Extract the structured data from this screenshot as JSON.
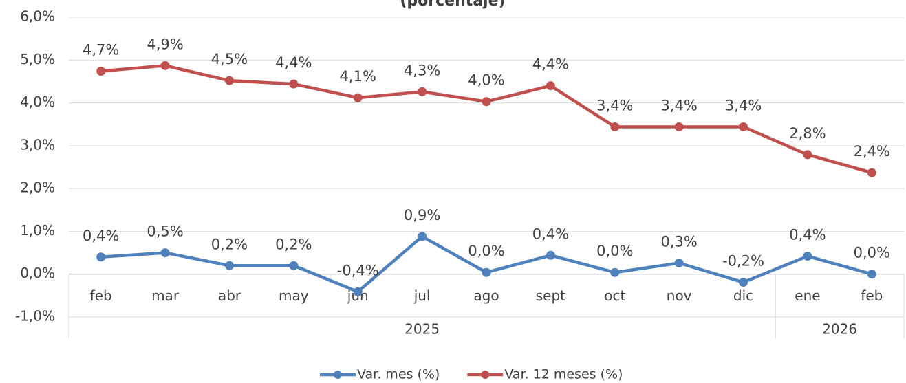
{
  "chart_data": {
    "type": "line",
    "title": "(porcentaje)",
    "categories": [
      "feb",
      "mar",
      "abr",
      "may",
      "jun",
      "jul",
      "ago",
      "sept",
      "oct",
      "nov",
      "dic",
      "ene",
      "feb"
    ],
    "groups": [
      {
        "label": "2025",
        "count": 11
      },
      {
        "label": "2026",
        "count": 2
      }
    ],
    "series": [
      {
        "name": "Var. mes (%)",
        "color": "#4f81bd",
        "values": [
          0.4,
          0.5,
          0.2,
          0.2,
          -0.41,
          0.88,
          0.04,
          0.44,
          0.04,
          0.26,
          -0.19,
          0.42,
          0.0
        ],
        "value_labels": [
          "0,4%",
          "0,5%",
          "0,2%",
          "0,2%",
          "-0,4%",
          "0,9%",
          "0,0%",
          "0,4%",
          "0,0%",
          "0,3%",
          "-0,2%",
          "0,4%",
          "0,0%"
        ]
      },
      {
        "name": "Var. 12 meses (%)",
        "color": "#c0504d",
        "values": [
          4.74,
          4.87,
          4.52,
          4.44,
          4.12,
          4.26,
          4.03,
          4.4,
          3.44,
          3.44,
          3.44,
          2.79,
          2.37
        ],
        "value_labels": [
          "4,7%",
          "4,9%",
          "4,5%",
          "4,4%",
          "4,1%",
          "4,3%",
          "4,0%",
          "4,4%",
          "3,4%",
          "3,4%",
          "3,4%",
          "2,8%",
          "2,4%"
        ]
      }
    ],
    "ylim": [
      -1,
      6
    ],
    "yticks": [
      {
        "value": -1,
        "label": "-1,0%"
      },
      {
        "value": 0,
        "label": "0,0%"
      },
      {
        "value": 1,
        "label": "1,0%"
      },
      {
        "value": 2,
        "label": "2,0%"
      },
      {
        "value": 3,
        "label": "3,0%"
      },
      {
        "value": 4,
        "label": "4,0%"
      },
      {
        "value": 5,
        "label": "5,0%"
      },
      {
        "value": 6,
        "label": "6,0%"
      }
    ],
    "grid": true,
    "legend": "bottom"
  }
}
